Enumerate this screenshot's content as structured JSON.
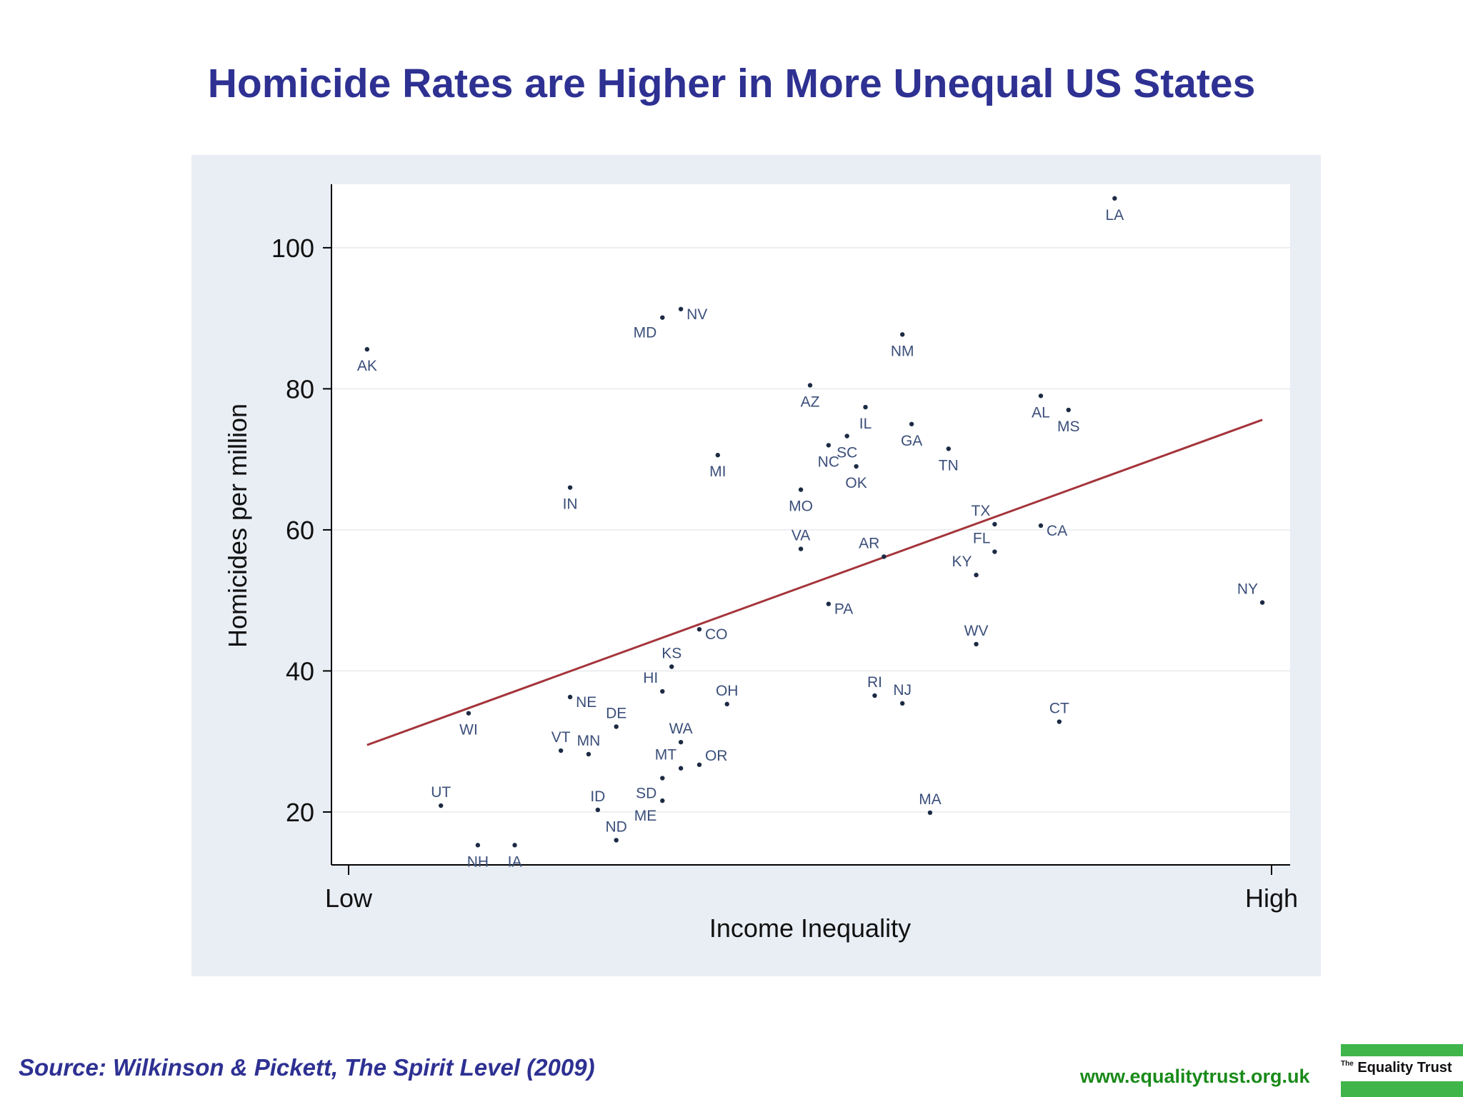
{
  "title": "Homicide Rates are Higher in More Unequal US States",
  "source": "Source: Wilkinson & Pickett, The Spirit Level (2009)",
  "website": "www.equalitytrust.org.uk",
  "logo": {
    "small": "The",
    "main": "Equality Trust"
  },
  "colors": {
    "title": "#2e3192",
    "trend": "#a4343a",
    "panel": "#e9eef5",
    "logo_green": "#3fb54a"
  },
  "chart_data": {
    "type": "scatter",
    "title": "Homicide Rates are Higher in More Unequal US States",
    "xlabel": "Income Inequality",
    "ylabel": "Homicides per million",
    "xlim": [
      0,
      100
    ],
    "ylim": [
      12.5,
      109
    ],
    "x_tick_labels": [
      {
        "x": 0,
        "label": "Low"
      },
      {
        "x": 100,
        "label": "High"
      }
    ],
    "y_ticks": [
      20,
      40,
      60,
      80,
      100
    ],
    "grid": true,
    "trendline": {
      "x": [
        2,
        99
      ],
      "y": [
        29.5,
        75.6
      ]
    },
    "points": [
      {
        "label": "AK",
        "x": 2.0,
        "y": 85.6
      },
      {
        "label": "LA",
        "x": 83.0,
        "y": 107.0
      },
      {
        "label": "MD",
        "x": 34.0,
        "y": 90.1
      },
      {
        "label": "NV",
        "x": 36.0,
        "y": 91.3
      },
      {
        "label": "NM",
        "x": 60.0,
        "y": 87.7
      },
      {
        "label": "AZ",
        "x": 50.0,
        "y": 80.5
      },
      {
        "label": "IL",
        "x": 56.0,
        "y": 77.4
      },
      {
        "label": "GA",
        "x": 61.0,
        "y": 75.0
      },
      {
        "label": "AL",
        "x": 75.0,
        "y": 79.0
      },
      {
        "label": "MS",
        "x": 78.0,
        "y": 77.0
      },
      {
        "label": "SC",
        "x": 54.0,
        "y": 73.3
      },
      {
        "label": "NC",
        "x": 52.0,
        "y": 72.0
      },
      {
        "label": "TN",
        "x": 65.0,
        "y": 71.5
      },
      {
        "label": "MI",
        "x": 40.0,
        "y": 70.6
      },
      {
        "label": "OK",
        "x": 55.0,
        "y": 69.0
      },
      {
        "label": "IN",
        "x": 24.0,
        "y": 66.0
      },
      {
        "label": "MO",
        "x": 49.0,
        "y": 65.7
      },
      {
        "label": "TX",
        "x": 70.0,
        "y": 60.8
      },
      {
        "label": "CA",
        "x": 75.0,
        "y": 60.6
      },
      {
        "label": "FL",
        "x": 70.0,
        "y": 56.9
      },
      {
        "label": "VA",
        "x": 49.0,
        "y": 57.3
      },
      {
        "label": "AR",
        "x": 58.0,
        "y": 56.2
      },
      {
        "label": "KY",
        "x": 68.0,
        "y": 53.6
      },
      {
        "label": "NY",
        "x": 99.0,
        "y": 49.7
      },
      {
        "label": "PA",
        "x": 52.0,
        "y": 49.5
      },
      {
        "label": "CO",
        "x": 38.0,
        "y": 45.9
      },
      {
        "label": "WV",
        "x": 68.0,
        "y": 43.8
      },
      {
        "label": "KS",
        "x": 35.0,
        "y": 40.6
      },
      {
        "label": "HI",
        "x": 34.0,
        "y": 37.1
      },
      {
        "label": "NE",
        "x": 24.0,
        "y": 36.3
      },
      {
        "label": "RI",
        "x": 57.0,
        "y": 36.5
      },
      {
        "label": "NJ",
        "x": 60.0,
        "y": 35.4
      },
      {
        "label": "OH",
        "x": 41.0,
        "y": 35.3
      },
      {
        "label": "WI",
        "x": 13.0,
        "y": 34.0
      },
      {
        "label": "CT",
        "x": 77.0,
        "y": 32.8
      },
      {
        "label": "DE",
        "x": 29.0,
        "y": 32.1
      },
      {
        "label": "WA",
        "x": 36.0,
        "y": 29.9
      },
      {
        "label": "VT",
        "x": 23.0,
        "y": 28.7
      },
      {
        "label": "MN",
        "x": 26.0,
        "y": 28.2
      },
      {
        "label": "MT",
        "x": 36.0,
        "y": 26.2
      },
      {
        "label": "OR",
        "x": 38.0,
        "y": 26.7
      },
      {
        "label": "SD",
        "x": 34.0,
        "y": 24.8
      },
      {
        "label": "ME",
        "x": 34.0,
        "y": 21.6
      },
      {
        "label": "ID",
        "x": 27.0,
        "y": 20.3
      },
      {
        "label": "UT",
        "x": 10.0,
        "y": 20.9
      },
      {
        "label": "MA",
        "x": 63.0,
        "y": 19.9
      },
      {
        "label": "ND",
        "x": 29.0,
        "y": 16.0
      },
      {
        "label": "NH",
        "x": 14.0,
        "y": 15.3
      },
      {
        "label": "IA",
        "x": 18.0,
        "y": 15.3
      }
    ]
  }
}
